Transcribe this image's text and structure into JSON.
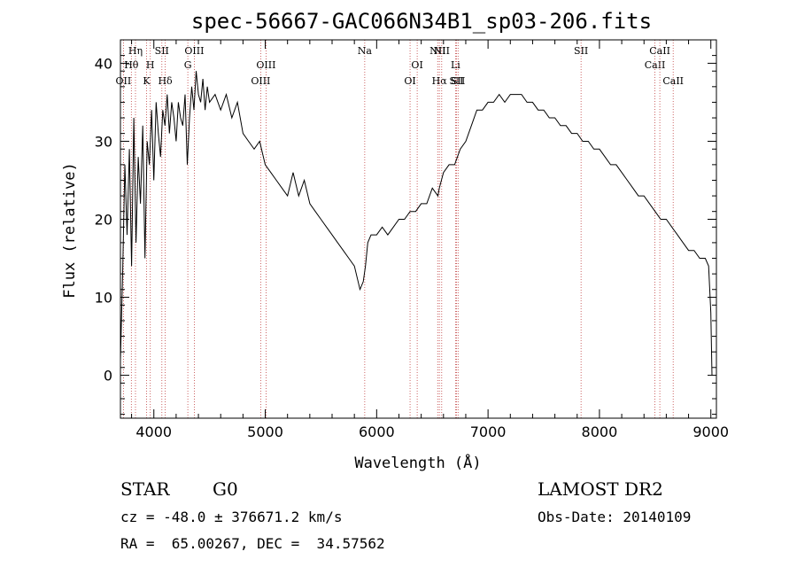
{
  "chart_data": {
    "type": "line",
    "title": "spec-56667-GAC066N34B1_sp03-206.fits",
    "xlabel": "Wavelength (Å)",
    "ylabel": "Flux (relative)",
    "xlim": [
      3700,
      9050
    ],
    "ylim": [
      -5.5,
      43
    ],
    "xticks": [
      4000,
      5000,
      6000,
      7000,
      8000,
      9000
    ],
    "yticks": [
      0,
      10,
      20,
      30,
      40
    ],
    "grid": false,
    "series": [
      {
        "x": [
          3700,
          3720,
          3740,
          3760,
          3780,
          3800,
          3820,
          3840,
          3860,
          3880,
          3900,
          3920,
          3940,
          3960,
          3980,
          4000,
          4020,
          4040,
          4060,
          4080,
          4100,
          4120,
          4140,
          4160,
          4180,
          4200,
          4220,
          4240,
          4260,
          4280,
          4300,
          4320,
          4340,
          4360,
          4380,
          4400,
          4420,
          4440,
          4460,
          4480,
          4500,
          4550,
          4600,
          4650,
          4700,
          4750,
          4800,
          4850,
          4900,
          4950,
          5000,
          5050,
          5100,
          5150,
          5200,
          5250,
          5300,
          5350,
          5400,
          5450,
          5500,
          5550,
          5600,
          5650,
          5700,
          5750,
          5800,
          5850,
          5880,
          5900,
          5920,
          5950,
          6000,
          6050,
          6100,
          6150,
          6200,
          6250,
          6300,
          6350,
          6400,
          6450,
          6500,
          6550,
          6563,
          6600,
          6650,
          6700,
          6750,
          6800,
          6850,
          6900,
          6950,
          7000,
          7050,
          7100,
          7150,
          7200,
          7250,
          7300,
          7350,
          7400,
          7450,
          7500,
          7550,
          7600,
          7650,
          7700,
          7750,
          7800,
          7850,
          7900,
          7950,
          8000,
          8050,
          8100,
          8150,
          8200,
          8250,
          8300,
          8350,
          8400,
          8450,
          8500,
          8550,
          8600,
          8650,
          8700,
          8750,
          8800,
          8850,
          8900,
          8950,
          8980,
          9000,
          9010
        ],
        "y": [
          2,
          13,
          27,
          18,
          29,
          14,
          33,
          17,
          28,
          22,
          32,
          15,
          30,
          27,
          34,
          25,
          35,
          31,
          28,
          34,
          32,
          36,
          31,
          35,
          33,
          30,
          35,
          33,
          32,
          36,
          27,
          33,
          37,
          34,
          39,
          36,
          35,
          38,
          34,
          37,
          35,
          36,
          34,
          36,
          33,
          35,
          31,
          30,
          29,
          30,
          27,
          26,
          25,
          24,
          23,
          26,
          23,
          25,
          22,
          21,
          20,
          19,
          18,
          17,
          16,
          15,
          14,
          11,
          12,
          14,
          17,
          18,
          18,
          19,
          18,
          19,
          20,
          20,
          21,
          21,
          22,
          22,
          24,
          23,
          24,
          26,
          27,
          27,
          29,
          30,
          32,
          34,
          34,
          35,
          35,
          36,
          35,
          36,
          36,
          36,
          35,
          35,
          34,
          34,
          33,
          33,
          32,
          32,
          31,
          31,
          30,
          30,
          29,
          29,
          28,
          27,
          27,
          26,
          25,
          24,
          23,
          23,
          22,
          21,
          20,
          20,
          19,
          18,
          17,
          16,
          16,
          15,
          15,
          14,
          8,
          0
        ]
      }
    ],
    "lines": [
      {
        "label": "OII",
        "x": 3727,
        "row": 3
      },
      {
        "label": "Hθ",
        "x": 3798,
        "row": 2
      },
      {
        "label": "Hη",
        "x": 3835,
        "row": 1
      },
      {
        "label": "K",
        "x": 3934,
        "row": 3
      },
      {
        "label": "H",
        "x": 3968,
        "row": 2
      },
      {
        "label": "SII",
        "x": 4072,
        "row": 1
      },
      {
        "label": "Hδ",
        "x": 4102,
        "row": 3
      },
      {
        "label": "G",
        "x": 4305,
        "row": 2
      },
      {
        "label": "OIII",
        "x": 4363,
        "row": 1
      },
      {
        "label": "OIII",
        "x": 4959,
        "row": 3
      },
      {
        "label": "OIII",
        "x": 5007,
        "row": 2
      },
      {
        "label": "Na",
        "x": 5893,
        "row": 1
      },
      {
        "label": "OI",
        "x": 6300,
        "row": 3
      },
      {
        "label": "OI",
        "x": 6364,
        "row": 2
      },
      {
        "label": "NII",
        "x": 6548,
        "row": 1
      },
      {
        "label": "Hα",
        "x": 6563,
        "row": 3
      },
      {
        "label": "NII",
        "x": 6584,
        "row": 1
      },
      {
        "label": "Li",
        "x": 6708,
        "row": 2
      },
      {
        "label": "SII",
        "x": 6717,
        "row": 3
      },
      {
        "label": "SII",
        "x": 6731,
        "row": 3
      },
      {
        "label": "SII",
        "x": 7835,
        "row": 1
      },
      {
        "label": "CaII",
        "x": 8498,
        "row": 2
      },
      {
        "label": "CaII",
        "x": 8542,
        "row": 1
      },
      {
        "label": "CaII",
        "x": 8662,
        "row": 3
      }
    ]
  },
  "info": {
    "object_class": "STAR",
    "subclass": "G0",
    "survey": "LAMOST DR2",
    "cz": "cz = -48.0 ± 376671.2 km/s",
    "obs_date": "Obs-Date: 20140109",
    "radec": "RA =  65.00267, DEC =  34.57562"
  }
}
